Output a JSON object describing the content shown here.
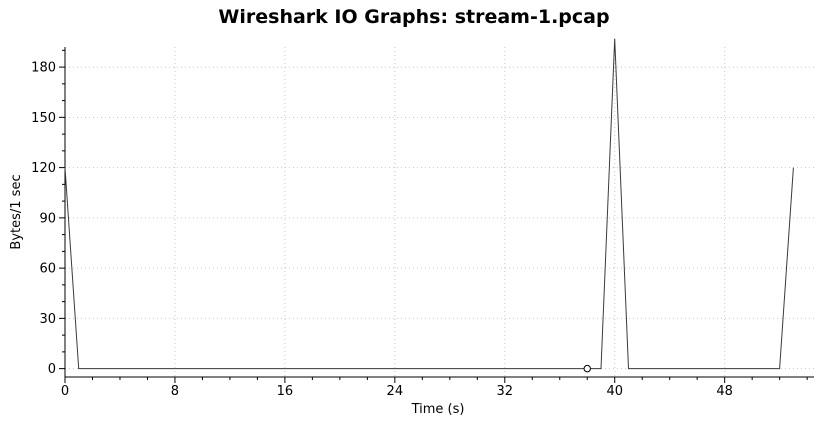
{
  "chart_data": {
    "type": "line",
    "title": "Wireshark IO Graphs: stream-1.pcap",
    "xlabel": "Time (s)",
    "ylabel": "Bytes/1 sec",
    "xlim": [
      0,
      54.5
    ],
    "ylim": [
      -5,
      192
    ],
    "x_ticks": [
      0,
      8,
      16,
      24,
      32,
      40,
      48
    ],
    "y_ticks": [
      0,
      30,
      60,
      90,
      120,
      150,
      180
    ],
    "grid": true,
    "series": [
      {
        "name": "",
        "color": "#3a3a3a",
        "points": [
          [
            0,
            120
          ],
          [
            1,
            0
          ],
          [
            37,
            0
          ],
          [
            38,
            0
          ],
          [
            39,
            0
          ],
          [
            40,
            197
          ],
          [
            41,
            0
          ],
          [
            52,
            0
          ],
          [
            53,
            120
          ]
        ]
      }
    ],
    "markers": [
      {
        "x": 38,
        "y": 0,
        "shape": "circle"
      }
    ]
  }
}
